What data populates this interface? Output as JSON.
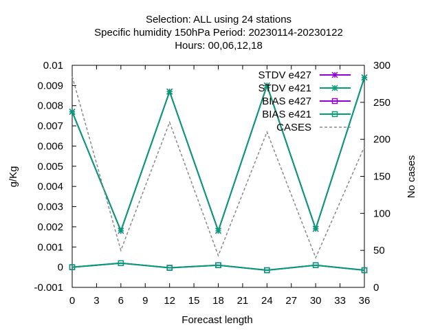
{
  "chart_data": {
    "type": "line",
    "title_lines": [
      "Selection: ALL using    24 stations",
      "Specific humidity 150hPa   Period: 20230114-20230122",
      "Hours:  00,06,12,18"
    ],
    "xlabel": "Forecast length",
    "ylabel": "g/Kg",
    "y2label": "No cases",
    "xlim": [
      0,
      36
    ],
    "ylim": [
      -0.001,
      0.01
    ],
    "y2lim": [
      0,
      300
    ],
    "x_ticks": [
      "0",
      "3",
      "6",
      "9",
      "12",
      "15",
      "18",
      "21",
      "24",
      "27",
      "30",
      "33",
      "36"
    ],
    "y_ticks": [
      "-0.001",
      "0",
      "0.001",
      "0.002",
      "0.003",
      "0.004",
      "0.005",
      "0.006",
      "0.007",
      "0.008",
      "0.009",
      "0.01"
    ],
    "y2_ticks": [
      "0",
      "50",
      "100",
      "150",
      "200",
      "250",
      "300"
    ],
    "grid": false,
    "legend_position": "top-right",
    "x": [
      0,
      6,
      12,
      18,
      24,
      30,
      36
    ],
    "series": [
      {
        "name": "STDV e427",
        "axis": "y",
        "color": "#9400d3",
        "marker": "star",
        "dash": "solid",
        "values": [
          0.0077,
          0.0018,
          0.0087,
          0.0018,
          0.009,
          0.0019,
          0.0094
        ]
      },
      {
        "name": "STDV e421",
        "axis": "y",
        "color": "#009e73",
        "marker": "star",
        "dash": "solid",
        "values": [
          0.0077,
          0.0018,
          0.0087,
          0.0018,
          0.009,
          0.0019,
          0.0094
        ]
      },
      {
        "name": "BIAS e427",
        "axis": "y",
        "color": "#9400d3",
        "marker": "square",
        "dash": "solid",
        "values": [
          0.0,
          0.0002,
          -3e-05,
          0.0001,
          -0.00015,
          0.0001,
          -0.00015
        ]
      },
      {
        "name": "BIAS e421",
        "axis": "y",
        "color": "#009e73",
        "marker": "square",
        "dash": "solid",
        "values": [
          0.0,
          0.0002,
          -3e-05,
          0.0001,
          -0.00015,
          0.0001,
          -0.00015
        ]
      },
      {
        "name": "CASES",
        "axis": "y2",
        "color": "#888888",
        "marker": "none",
        "dash": "dashed",
        "values": [
          285,
          50,
          223,
          43,
          210,
          40,
          190
        ]
      }
    ]
  }
}
